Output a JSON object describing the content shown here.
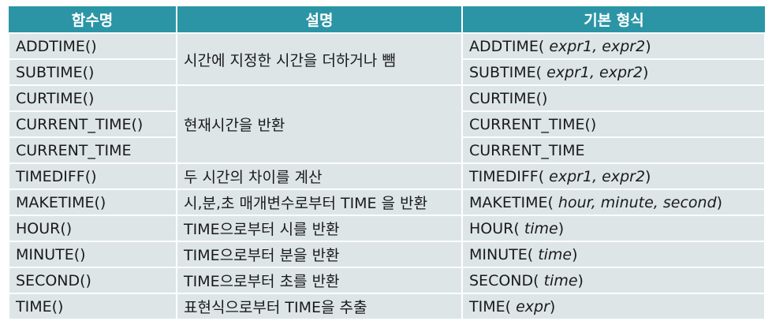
{
  "headers": [
    "함수명",
    "설명",
    "기본 형식"
  ],
  "rows": [
    {
      "name": "ADDTIME()",
      "form_prefix": "ADDTIME(",
      "form_args": "expr1, expr2",
      "form_suffix": ")"
    },
    {
      "name": "SUBTIME()",
      "form_prefix": "SUBTIME(",
      "form_args": "expr1, expr2",
      "form_suffix": ")"
    },
    {
      "name": "CURTIME()",
      "form_prefix": "CURTIME()",
      "form_args": "",
      "form_suffix": ""
    },
    {
      "name": "CURRENT_TIME()",
      "form_prefix": "CURRENT_TIME()",
      "form_args": "",
      "form_suffix": ""
    },
    {
      "name": "CURRENT_TIME",
      "form_prefix": "CURRENT_TIME",
      "form_args": "",
      "form_suffix": ""
    },
    {
      "name": "TIMEDIFF()",
      "form_prefix": "TIMEDIFF(",
      "form_args": "expr1, expr2",
      "form_suffix": ")"
    },
    {
      "name": "MAKETIME()",
      "form_prefix": "MAKETIME(",
      "form_args": "hour, minute, second",
      "form_suffix": ")"
    },
    {
      "name": "HOUR()",
      "form_prefix": "HOUR(",
      "form_args": "time",
      "form_suffix": ")"
    },
    {
      "name": "MINUTE()",
      "form_prefix": "MINUTE(",
      "form_args": "time",
      "form_suffix": ")"
    },
    {
      "name": "SECOND()",
      "form_prefix": "SECOND(",
      "form_args": "time",
      "form_suffix": ")"
    },
    {
      "name": "TIME()",
      "form_prefix": "TIME(",
      "form_args": "expr",
      "form_suffix": ")"
    }
  ],
  "descriptions": {
    "add_sub": "시간에 지정한 시간을 더하거나 뺌",
    "current": "현재시간을 반환",
    "timediff": "두 시간의 차이를 계산",
    "maketime": "시,분,초 매개변수로부터 TIME 을 반환",
    "hour": "TIME으로부터 시를 반환",
    "minute": "TIME으로부터 분을 반환",
    "second": "TIME으로부터 초를 반환",
    "time": "표현식으로부터 TIME을 추출"
  },
  "colors": {
    "header_bg": "#2b95a6",
    "cell_bg": "#dde5e7",
    "header_text": "#ffffff"
  }
}
